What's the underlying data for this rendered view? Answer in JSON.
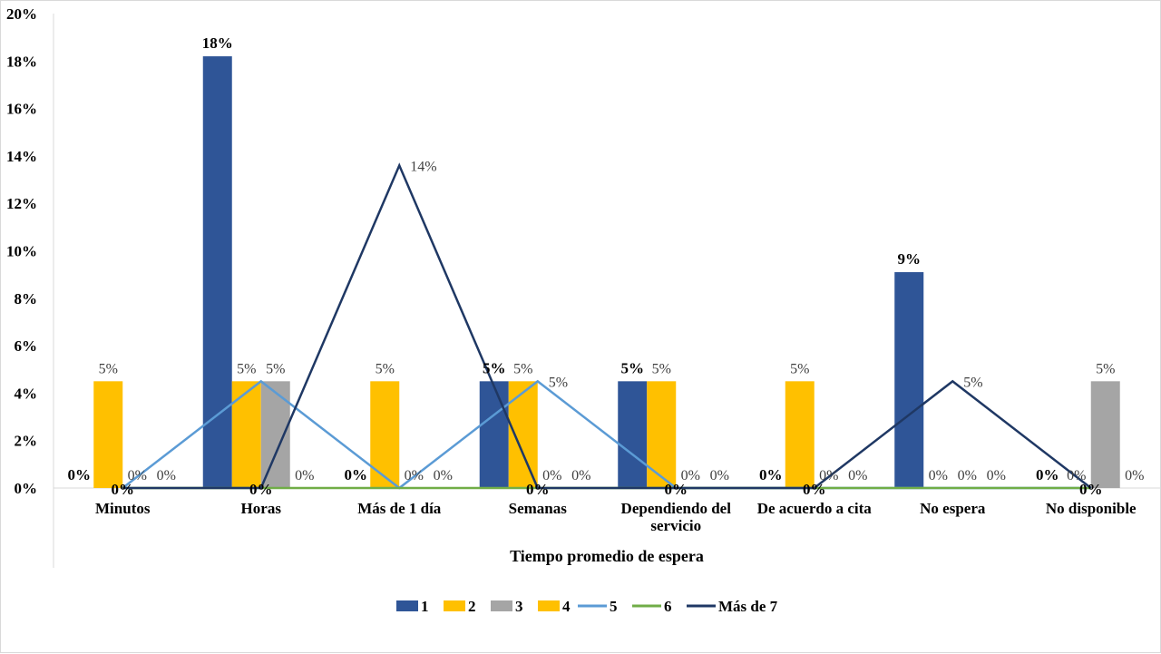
{
  "chart_data": {
    "type": "bar+line",
    "title": "",
    "xlabel": "Tiempo promedio de espera",
    "ylabel": "",
    "ylim": [
      0,
      20
    ],
    "yticks": [
      "0%",
      "2%",
      "4%",
      "6%",
      "8%",
      "10%",
      "12%",
      "14%",
      "16%",
      "18%",
      "20%"
    ],
    "categories": [
      [
        "Minutos"
      ],
      [
        "Horas"
      ],
      [
        "Más de 1 día"
      ],
      [
        "Semanas"
      ],
      [
        "Dependiendo del",
        "servicio"
      ],
      [
        "De acuerdo a cita"
      ],
      [
        "No espera"
      ],
      [
        "No disponible"
      ]
    ],
    "series": [
      {
        "name": "1",
        "kind": "bar",
        "color": "#2F5597",
        "values": [
          0,
          18.2,
          0,
          4.5,
          4.5,
          0,
          9.1,
          0
        ],
        "labels": [
          "0%",
          "18%",
          "0%",
          "5%",
          "5%",
          "0%",
          "9%",
          "0%"
        ],
        "label_bold": true
      },
      {
        "name": "2",
        "kind": "bar",
        "color": "#FFC000",
        "values": [
          4.5,
          4.5,
          4.5,
          4.5,
          4.5,
          4.5,
          0,
          0
        ],
        "labels": [
          "5%",
          "5%",
          "5%",
          "5%",
          "5%",
          "5%",
          "0%",
          "0%"
        ],
        "label_bold": false
      },
      {
        "name": "3",
        "kind": "bar",
        "color": "#A5A5A5",
        "values": [
          0,
          4.5,
          0,
          0,
          0,
          0,
          0,
          4.5
        ],
        "labels": [
          "0%",
          "5%",
          "0%",
          "0%",
          "0%",
          "0%",
          "0%",
          "5%"
        ],
        "label_bold": false
      },
      {
        "name": "4",
        "kind": "bar",
        "color": "#FFC000",
        "values": [
          0,
          0,
          0,
          0,
          0,
          0,
          0,
          0
        ],
        "labels": [
          "0%",
          "0%",
          "0%",
          "0%",
          "0%",
          "0%",
          "0%",
          "0%"
        ],
        "label_bold": false
      },
      {
        "name": "5",
        "kind": "line",
        "color": "#5B9BD5",
        "values": [
          0,
          4.5,
          0,
          4.5,
          0,
          0,
          0,
          0
        ],
        "labels": [
          "",
          "",
          "",
          "5%",
          "",
          "",
          "",
          ""
        ],
        "label_bold": false
      },
      {
        "name": "6",
        "kind": "line",
        "color": "#70AD47",
        "values": [
          0,
          0,
          0,
          0,
          0,
          0,
          0,
          0
        ],
        "labels": [
          "",
          "",
          "",
          "",
          "",
          "",
          "",
          ""
        ],
        "label_bold": false
      },
      {
        "name": "Más de 7",
        "kind": "line",
        "color": "#1F3864",
        "values": [
          0,
          0,
          13.6,
          0,
          0,
          0,
          4.5,
          0
        ],
        "labels": [
          "0%",
          "0%",
          "14%",
          "0%",
          "0%",
          "0%",
          "5%",
          "0%"
        ],
        "label_bold": true
      }
    ],
    "legend": {
      "placement": "bottom",
      "entries": [
        "1",
        "2",
        "3",
        "4",
        "5",
        "6",
        "Más de 7"
      ]
    },
    "grid": false
  }
}
